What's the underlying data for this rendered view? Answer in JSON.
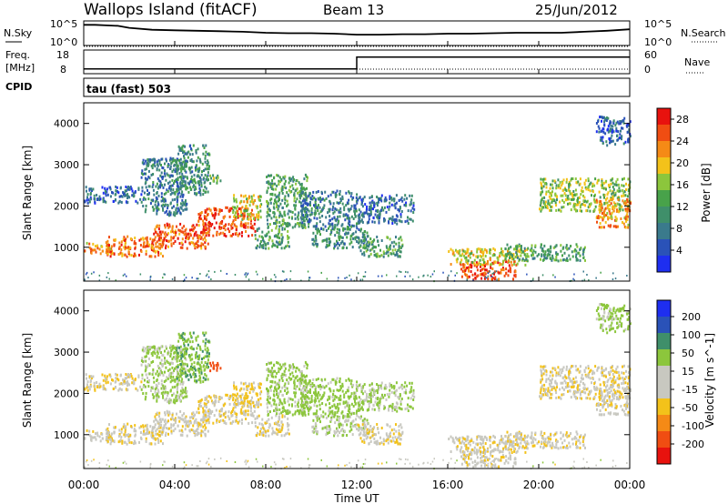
{
  "header": {
    "station": "Wallops Island (fitACF)",
    "beam": "Beam 13",
    "date": "25/Jun/2012"
  },
  "colors": {
    "power_scale": [
      "#1e2ef0",
      "#2a52b8",
      "#3a7a8c",
      "#3f8f6a",
      "#48a24a",
      "#8cc63c",
      "#f3c21a",
      "#f58a16",
      "#f04d12",
      "#e8120e"
    ],
    "velocity_scale": [
      "#e8120e",
      "#f04d12",
      "#f58a16",
      "#f3c21a",
      "#c8c8c0",
      "#c8c8c0",
      "#8cc63c",
      "#3f8f6a",
      "#2a52b8",
      "#1e2ef0"
    ],
    "line": "#000000",
    "background": "#ffffff"
  },
  "chart_data": [
    {
      "type": "line",
      "panel": "noise",
      "left_label": "N.Sky",
      "left_ticks": [
        "10^5",
        "10^0"
      ],
      "right_label": "N.Search",
      "right_ticks": [
        "10^5",
        "10^0"
      ],
      "x": [
        0,
        0.5,
        1,
        1.5,
        2,
        3,
        4,
        5,
        6,
        7,
        8,
        9,
        10,
        11,
        12,
        13,
        14,
        15,
        16,
        17,
        18,
        19,
        20,
        21,
        22,
        23,
        24
      ],
      "series": [
        {
          "values": [
            4.2,
            4.2,
            4.1,
            4.0,
            3.6,
            3.2,
            3.1,
            3.0,
            2.9,
            2.8,
            2.6,
            2.5,
            2.5,
            2.4,
            2.2,
            2.2,
            2.3,
            2.3,
            2.4,
            2.4,
            2.5,
            2.6,
            2.6,
            2.6,
            2.8,
            3.0,
            3.3
          ]
        }
      ],
      "ylim": [
        0,
        5
      ]
    },
    {
      "type": "line",
      "panel": "frequency",
      "left_label": "Freq.",
      "left_unit": "[MHz]",
      "left_ticks": [
        "18",
        "8"
      ],
      "right_label": "Nave",
      "right_ticks": [
        "60",
        "0"
      ],
      "x": [
        0,
        12,
        12,
        24
      ],
      "series": [
        {
          "values": [
            10,
            10,
            15,
            15
          ]
        }
      ],
      "ylim": [
        8,
        18
      ]
    },
    {
      "type": "heatmap",
      "panel": "power",
      "cpid_label": "CPID",
      "mode_label": "tau (fast) 503",
      "ylabel": "Slant Range [km]",
      "yticks": [
        "1000",
        "2000",
        "3000",
        "4000"
      ],
      "ylim": [
        180,
        4500
      ],
      "xlim": [
        0,
        24
      ],
      "colorbar_label": "Power [dB]",
      "colorbar_ticks": [
        "4",
        "8",
        "12",
        "16",
        "20",
        "24",
        "28"
      ],
      "colorbar_range": [
        0,
        30
      ]
    },
    {
      "type": "heatmap",
      "panel": "velocity",
      "ylabel": "Slant Range [km]",
      "yticks": [
        "1000",
        "2000",
        "3000",
        "4000"
      ],
      "ylim": [
        180,
        4500
      ],
      "xlim": [
        0,
        24
      ],
      "colorbar_label": "Velocity [m s^-1]",
      "colorbar_ticks": [
        "200",
        "100",
        "50",
        "15",
        "-15",
        "-50",
        "-100",
        "-200"
      ],
      "colorbar_range": [
        -250,
        250
      ]
    }
  ],
  "x_axis": {
    "ticks": [
      "00:00",
      "04:00",
      "08:00",
      "12:00",
      "16:00",
      "20:00",
      "00:00"
    ],
    "label": "Time UT"
  },
  "echo_regions": [
    {
      "t0": 0.0,
      "t1": 1.2,
      "r0": 850,
      "r1": 1150,
      "p": 22,
      "v": -5
    },
    {
      "t0": 1.0,
      "t1": 3.5,
      "r0": 800,
      "r1": 1300,
      "p": 24,
      "v": -8
    },
    {
      "t0": 3.0,
      "t1": 5.5,
      "r0": 1000,
      "r1": 1600,
      "p": 25,
      "v": -5
    },
    {
      "t0": 5.0,
      "t1": 7.5,
      "r0": 1300,
      "r1": 2000,
      "p": 26,
      "v": -10
    },
    {
      "t0": 6.5,
      "t1": 7.8,
      "r0": 1700,
      "r1": 2300,
      "p": 18,
      "v": -20
    },
    {
      "t0": 0.0,
      "t1": 2.5,
      "r0": 2100,
      "r1": 2500,
      "p": 6,
      "v": -12
    },
    {
      "t0": 2.5,
      "t1": 4.5,
      "r0": 1800,
      "r1": 3200,
      "p": 8,
      "v": 20
    },
    {
      "t0": 4.0,
      "t1": 5.5,
      "r0": 2300,
      "r1": 3500,
      "p": 10,
      "v": 40
    },
    {
      "t0": 5.5,
      "t1": 6.0,
      "r0": 2550,
      "r1": 2800,
      "p": 14,
      "v": -130
    },
    {
      "t0": 7.5,
      "t1": 9.0,
      "r0": 1000,
      "r1": 1500,
      "p": 12,
      "v": -5
    },
    {
      "t0": 8.0,
      "t1": 9.8,
      "r0": 1500,
      "r1": 2800,
      "p": 12,
      "v": 25
    },
    {
      "t0": 9.5,
      "t1": 12.0,
      "r0": 1500,
      "r1": 2400,
      "p": 8,
      "v": 30
    },
    {
      "t0": 10.0,
      "t1": 12.5,
      "r0": 1000,
      "r1": 1500,
      "p": 10,
      "v": 10
    },
    {
      "t0": 12.0,
      "t1": 14.0,
      "r0": 800,
      "r1": 1300,
      "p": 12,
      "v": -5
    },
    {
      "t0": 12.0,
      "t1": 14.5,
      "r0": 1600,
      "r1": 2300,
      "p": 7,
      "v": 20
    },
    {
      "t0": 16.5,
      "t1": 19.0,
      "r0": 250,
      "r1": 700,
      "p": 26,
      "v": -5
    },
    {
      "t0": 16.0,
      "t1": 19.5,
      "r0": 600,
      "r1": 1000,
      "p": 18,
      "v": -8
    },
    {
      "t0": 18.5,
      "t1": 22.0,
      "r0": 700,
      "r1": 1100,
      "p": 12,
      "v": -6
    },
    {
      "t0": 20.0,
      "t1": 24.0,
      "r0": 1900,
      "r1": 2700,
      "p": 16,
      "v": -10
    },
    {
      "t0": 22.5,
      "t1": 24.0,
      "r0": 1500,
      "r1": 2200,
      "p": 22,
      "v": -5
    },
    {
      "t0": 22.5,
      "t1": 24.0,
      "r0": 3500,
      "r1": 4200,
      "p": 6,
      "v": 25
    }
  ]
}
